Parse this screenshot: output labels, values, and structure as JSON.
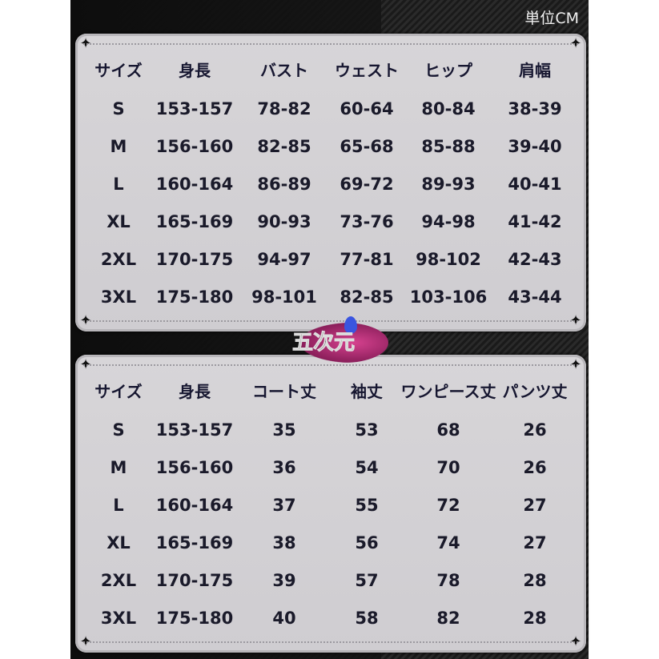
{
  "unit_label": "単位CM",
  "logo_text": "五次元",
  "table1": {
    "headers": [
      "サイズ",
      "身長",
      "バスト",
      "ウェスト",
      "ヒップ",
      "肩幅"
    ],
    "rows": [
      [
        "S",
        "153-157",
        "78-82",
        "60-64",
        "80-84",
        "38-39"
      ],
      [
        "M",
        "156-160",
        "82-85",
        "65-68",
        "85-88",
        "39-40"
      ],
      [
        "L",
        "160-164",
        "86-89",
        "69-72",
        "89-93",
        "40-41"
      ],
      [
        "XL",
        "165-169",
        "90-93",
        "73-76",
        "94-98",
        "41-42"
      ],
      [
        "2XL",
        "170-175",
        "94-97",
        "77-81",
        "98-102",
        "42-43"
      ],
      [
        "3XL",
        "175-180",
        "98-101",
        "82-85",
        "103-106",
        "43-44"
      ]
    ]
  },
  "table2": {
    "headers": [
      "サイズ",
      "身長",
      "コート丈",
      "袖丈",
      "ワンピース丈",
      "パンツ丈"
    ],
    "rows": [
      [
        "S",
        "153-157",
        "35",
        "53",
        "68",
        "26"
      ],
      [
        "M",
        "156-160",
        "36",
        "54",
        "70",
        "26"
      ],
      [
        "L",
        "160-164",
        "37",
        "55",
        "72",
        "27"
      ],
      [
        "XL",
        "165-169",
        "38",
        "56",
        "74",
        "27"
      ],
      [
        "2XL",
        "170-175",
        "39",
        "57",
        "78",
        "28"
      ],
      [
        "3XL",
        "175-180",
        "40",
        "58",
        "82",
        "28"
      ]
    ]
  }
}
